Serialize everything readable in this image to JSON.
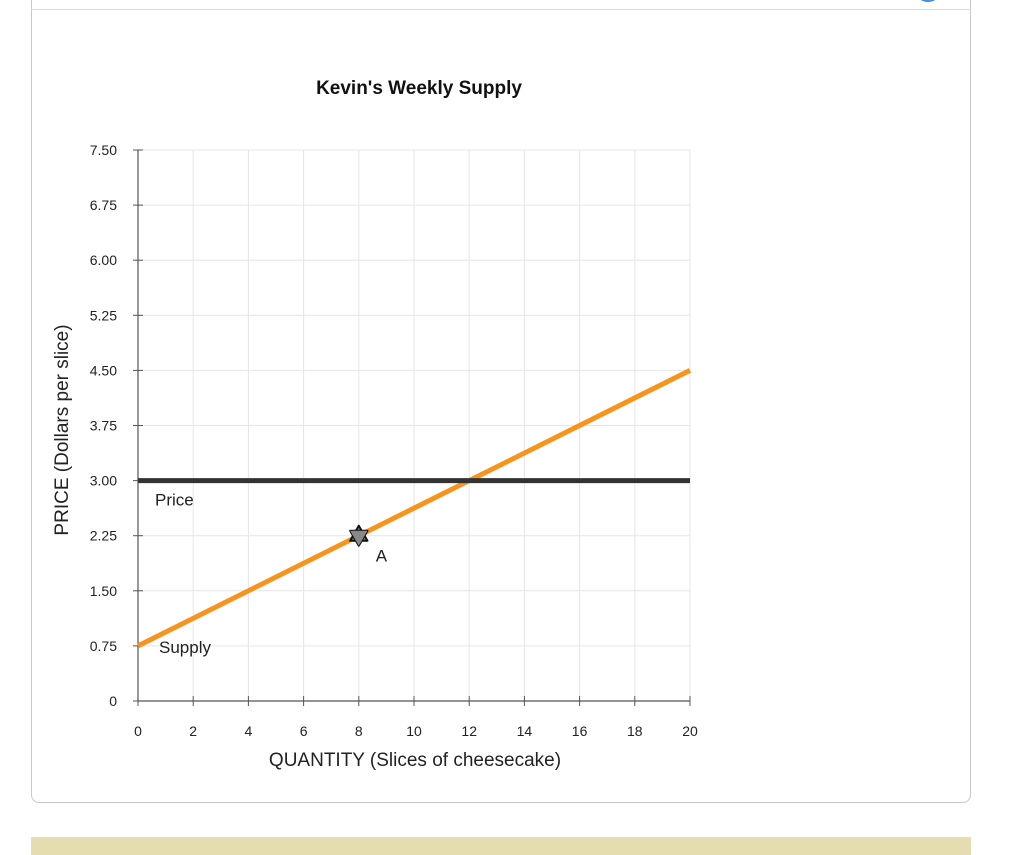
{
  "chart_data": {
    "type": "line",
    "title": "Kevin's Weekly Supply",
    "xlabel": "QUANTITY (Slices of cheesecake)",
    "ylabel": "PRICE (Dollars per slice)",
    "xlim": [
      0,
      20
    ],
    "ylim": [
      0,
      7.5
    ],
    "x_ticks": [
      "0",
      "2",
      "4",
      "6",
      "8",
      "10",
      "12",
      "14",
      "16",
      "18",
      "20"
    ],
    "y_ticks": [
      "0",
      "0.75",
      "1.50",
      "2.25",
      "3.00",
      "3.75",
      "4.50",
      "5.25",
      "6.00",
      "6.75",
      "7.50"
    ],
    "grid": true,
    "series": [
      {
        "name": "Supply",
        "color": "#f7941d",
        "x": [
          0,
          20
        ],
        "y": [
          0.75,
          4.5
        ]
      },
      {
        "name": "Price",
        "color": "#333333",
        "x": [
          0,
          20
        ],
        "y": [
          3.0,
          3.0
        ]
      }
    ],
    "points": [
      {
        "label": "A",
        "x": 8,
        "y": 2.25,
        "color": "#888888"
      }
    ]
  },
  "colors": {
    "card_border": "#c9c9c9",
    "feedback_bar": "#e5dcb0",
    "accent_blue": "#4a8fd4"
  },
  "icons": {
    "corner": "help-circle-icon"
  }
}
